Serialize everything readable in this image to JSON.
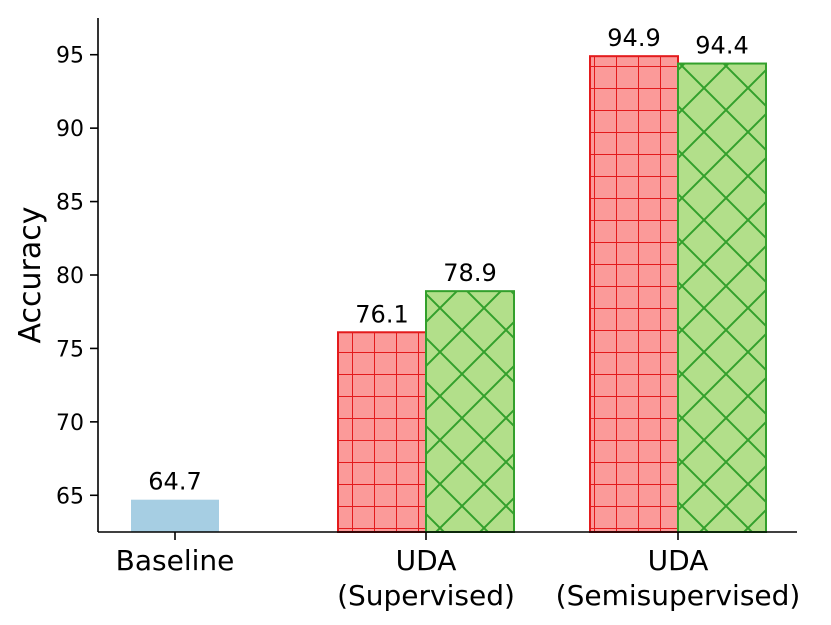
{
  "chart_data": {
    "type": "bar",
    "title": "",
    "xlabel": "",
    "ylabel": "Accuracy",
    "ylim": [
      62.5,
      97.5
    ],
    "yticks": [
      65,
      70,
      75,
      80,
      85,
      90,
      95
    ],
    "grid": false,
    "legend": "none",
    "categories": [
      {
        "lines": [
          "Baseline"
        ]
      },
      {
        "lines": [
          "UDA",
          "(Supervised)"
        ]
      },
      {
        "lines": [
          "UDA",
          "(Semisupervised)"
        ]
      }
    ],
    "bars": [
      {
        "category": 0,
        "slot": "center",
        "value": 64.7,
        "label": "64.7",
        "fill": "#a6cee3",
        "edge": "none",
        "hatch": "none"
      },
      {
        "category": 1,
        "slot": "left",
        "value": 76.1,
        "label": "76.1",
        "fill": "#fb9a99",
        "edge": "#e31a1c",
        "hatch": "grid"
      },
      {
        "category": 1,
        "slot": "right",
        "value": 78.9,
        "label": "78.9",
        "fill": "#b2df8a",
        "edge": "#33a02c",
        "hatch": "cross"
      },
      {
        "category": 2,
        "slot": "left",
        "value": 94.9,
        "label": "94.9",
        "fill": "#fb9a99",
        "edge": "#e31a1c",
        "hatch": "grid"
      },
      {
        "category": 2,
        "slot": "right",
        "value": 94.4,
        "label": "94.4",
        "fill": "#b2df8a",
        "edge": "#33a02c",
        "hatch": "cross"
      }
    ]
  }
}
